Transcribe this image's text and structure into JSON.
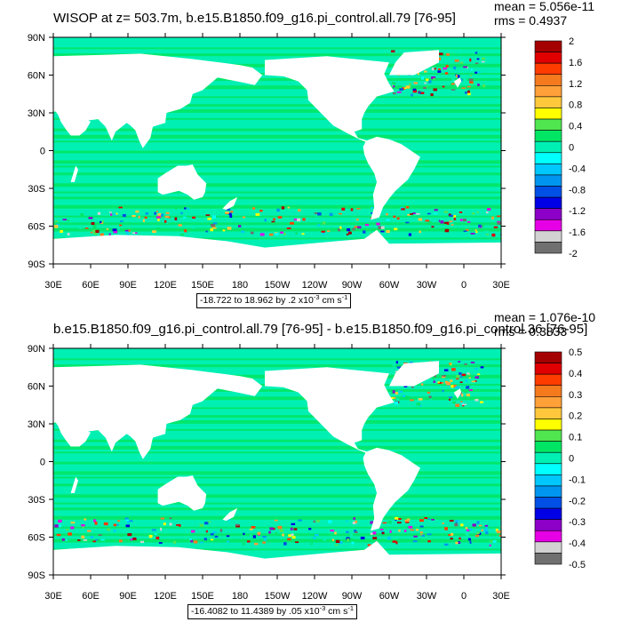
{
  "chart_data": [
    {
      "type": "heatmap",
      "title": "WISOP at z= 503.7m, b.e15.B1850.f09_g16.pi_control.all.79 [76-95]",
      "stats": {
        "mean": "mean = 5.056e-11",
        "rms": "rms = 0.4937"
      },
      "range_label": {
        "text": "-18.722 to 18.962 by .2 x10",
        "exp": "-3",
        "unit": " cm s",
        "unit_exp": "-1"
      },
      "y_ticks": [
        "90N",
        "60N",
        "30N",
        "0",
        "30S",
        "60S",
        "90S"
      ],
      "x_ticks": [
        "30E",
        "60E",
        "90E",
        "120E",
        "150E",
        "180",
        "150W",
        "120W",
        "90W",
        "60W",
        "30W",
        "0",
        "30E"
      ],
      "lon_range": [
        30,
        390
      ],
      "lat_range": [
        -90,
        90
      ],
      "colorbar": {
        "labels": [
          "2",
          "1.6",
          "1.2",
          "0.8",
          "0.4",
          "0",
          "-0.4",
          "-0.8",
          "-1.2",
          "-1.6",
          "-2"
        ],
        "colors": [
          "#a50000",
          "#e00000",
          "#ff3c00",
          "#f57a1e",
          "#ffa038",
          "#ffc83c",
          "#ffff00",
          "#50e650",
          "#00e664",
          "#00f0b4",
          "#00ffff",
          "#00c8ff",
          "#0096f0",
          "#0050e6",
          "#0000e6",
          "#8c00c8",
          "#e600e6",
          "#d2d2d2",
          "#707070"
        ]
      },
      "fill_colors": {
        "ocean_main": "#00f0b4",
        "ocean_alt": "#00e664",
        "land": "#ffffff"
      }
    },
    {
      "type": "heatmap",
      "title": "b.e15.B1850.f09_g16.pi_control.all.79 [76-95] - b.e15.B1850.f09_g16.pi_control.36 [76-95]",
      "stats": {
        "mean": "mean = 1.076e-10",
        "rms": "rms = 0.3833"
      },
      "range_label": {
        "text": "-16.4082 to 11.4389 by .05 x10",
        "exp": "-3",
        "unit": " cm s",
        "unit_exp": "-1"
      },
      "y_ticks": [
        "90N",
        "60N",
        "30N",
        "0",
        "30S",
        "60S",
        "90S"
      ],
      "x_ticks": [
        "30E",
        "60E",
        "90E",
        "120E",
        "150E",
        "180",
        "150W",
        "120W",
        "90W",
        "60W",
        "30W",
        "0",
        "30E"
      ],
      "lon_range": [
        30,
        390
      ],
      "lat_range": [
        -90,
        90
      ],
      "colorbar": {
        "labels": [
          "0.5",
          "0.4",
          "0.3",
          "0.2",
          "0.1",
          "0",
          "-0.1",
          "-0.2",
          "-0.3",
          "-0.4",
          "-0.5"
        ],
        "colors": [
          "#a50000",
          "#e00000",
          "#ff3c00",
          "#f57a1e",
          "#ffa038",
          "#ffc83c",
          "#ffff00",
          "#50e650",
          "#00e664",
          "#00f0b4",
          "#00ffff",
          "#00c8ff",
          "#0096f0",
          "#0050e6",
          "#0000e6",
          "#8c00c8",
          "#e600e6",
          "#d2d2d2",
          "#707070"
        ]
      },
      "fill_colors": {
        "ocean_main": "#00f0b4",
        "ocean_alt": "#00e664",
        "land": "#ffffff"
      }
    }
  ]
}
